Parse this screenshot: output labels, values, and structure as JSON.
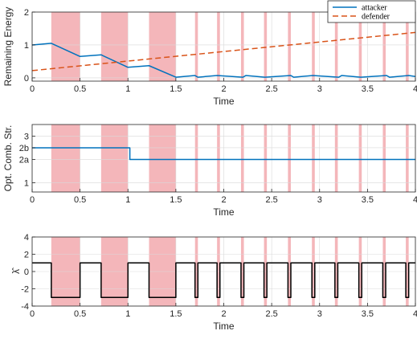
{
  "chart_data": [
    {
      "type": "line",
      "xlabel": "Time",
      "ylabel": "Remaining Energy",
      "xlim": [
        0,
        4
      ],
      "ylim": [
        -0.1,
        2
      ],
      "xticks": [
        "0",
        "0.5",
        "1",
        "1.5",
        "2",
        "2.5",
        "3",
        "3.5",
        "4"
      ],
      "yticks": [
        "0",
        "1",
        "2"
      ],
      "grid": true,
      "legend_position": "top-right",
      "series": [
        {
          "name": "attacker",
          "color": "#0072BD",
          "style": "solid",
          "x": [
            0,
            0.2,
            0.5,
            0.72,
            1.0,
            1.22,
            1.5,
            1.7,
            1.73,
            1.93,
            2.2,
            2.23,
            2.43,
            2.7,
            2.73,
            2.93,
            3.2,
            3.23,
            3.43,
            3.7,
            3.73,
            3.93,
            4.0
          ],
          "y": [
            1.0,
            1.05,
            0.65,
            0.7,
            0.32,
            0.37,
            0.02,
            0.07,
            0.02,
            0.07,
            0.02,
            0.07,
            0.02,
            0.07,
            0.02,
            0.07,
            0.02,
            0.07,
            0.02,
            0.07,
            0.02,
            0.07,
            0.04
          ]
        },
        {
          "name": "defender",
          "color": "#D95319",
          "style": "dashed",
          "x": [
            0,
            4
          ],
          "y": [
            0.22,
            1.38
          ]
        }
      ]
    },
    {
      "type": "line",
      "xlabel": "Time",
      "ylabel": "Opt. Comb. Str.",
      "xlim": [
        0,
        4
      ],
      "ylim": [
        0.6,
        3.5
      ],
      "xticks": [
        "0",
        "0.5",
        "1",
        "1.5",
        "2",
        "2.5",
        "3",
        "3.5",
        "4"
      ],
      "yticks": [
        "1",
        "2a",
        "2b",
        "3"
      ],
      "ytick_values": [
        1,
        2,
        2.5,
        3
      ],
      "grid": true,
      "series": [
        {
          "color": "#0072BD",
          "style": "solid",
          "x": [
            0,
            1.02,
            1.02,
            4
          ],
          "y": [
            2.5,
            2.5,
            2,
            2
          ]
        }
      ]
    },
    {
      "type": "line",
      "xlabel": "Time",
      "ylabel": "λ̂",
      "xlim": [
        0,
        4
      ],
      "ylim": [
        -4,
        4
      ],
      "xticks": [
        "0",
        "0.5",
        "1",
        "1.5",
        "2",
        "2.5",
        "3",
        "3.5",
        "4"
      ],
      "yticks": [
        "-4",
        "-2",
        "0",
        "2",
        "4"
      ],
      "ytick_values": [
        -4,
        -2,
        0,
        2,
        4
      ],
      "grid": true,
      "series": [
        {
          "color": "#000000",
          "style": "solid",
          "x": [
            0,
            0.2,
            0.2,
            0.5,
            0.5,
            0.72,
            0.72,
            1.0,
            1.0,
            1.22,
            1.22,
            1.5,
            1.5,
            1.7,
            1.7,
            1.73,
            1.73,
            1.93,
            1.93,
            1.96,
            1.96,
            2.18,
            2.18,
            2.21,
            2.21,
            2.42,
            2.42,
            2.45,
            2.45,
            2.67,
            2.67,
            2.7,
            2.7,
            2.92,
            2.92,
            2.95,
            2.95,
            3.16,
            3.16,
            3.19,
            3.19,
            3.41,
            3.41,
            3.44,
            3.44,
            3.66,
            3.66,
            3.69,
            3.69,
            3.9,
            3.9,
            3.93,
            3.93,
            4.0
          ],
          "y": [
            1,
            1,
            -3,
            -3,
            1,
            1,
            -3,
            -3,
            1,
            1,
            -3,
            -3,
            1,
            1,
            -3,
            -3,
            1,
            1,
            -3,
            -3,
            1,
            1,
            -3,
            -3,
            1,
            1,
            -3,
            -3,
            1,
            1,
            -3,
            -3,
            1,
            1,
            -3,
            -3,
            1,
            1,
            -3,
            -3,
            1,
            1,
            -3,
            -3,
            1,
            1,
            -3,
            -3,
            1,
            1,
            -3,
            -3,
            1,
            1
          ]
        }
      ]
    }
  ],
  "shaded_intervals": [
    [
      0.2,
      0.5
    ],
    [
      0.72,
      1.0
    ],
    [
      1.22,
      1.5
    ],
    [
      1.7,
      1.73
    ],
    [
      1.93,
      1.96
    ],
    [
      2.18,
      2.21
    ],
    [
      2.42,
      2.45
    ],
    [
      2.67,
      2.7
    ],
    [
      2.92,
      2.95
    ],
    [
      3.16,
      3.19
    ],
    [
      3.41,
      3.44
    ],
    [
      3.66,
      3.69
    ],
    [
      3.9,
      3.93
    ]
  ],
  "shade_color": "#F4B6BA"
}
